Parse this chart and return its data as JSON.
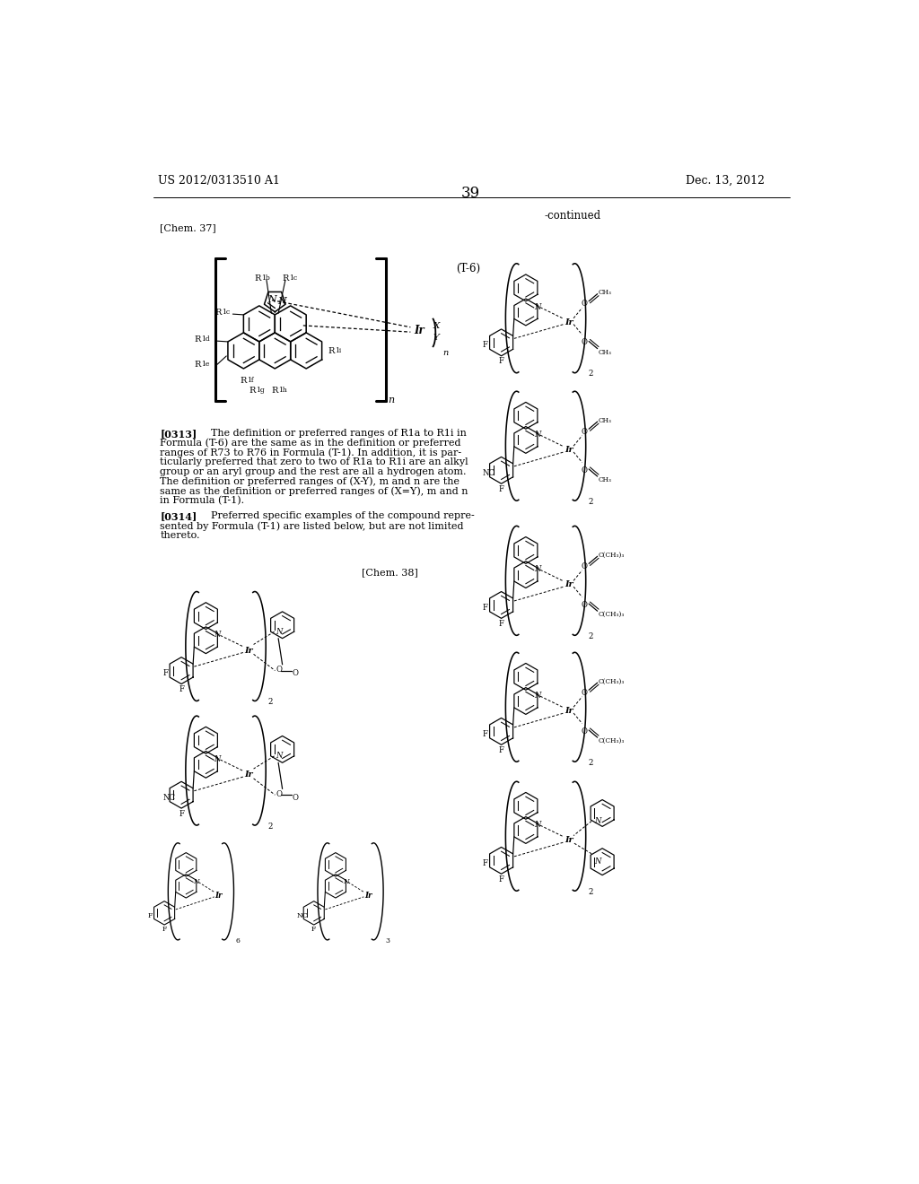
{
  "page_header_left": "US 2012/0313510 A1",
  "page_header_right": "Dec. 13, 2012",
  "page_number": "39",
  "continued_label": "-continued",
  "chem37_label": "[Chem. 37]",
  "chem38_label": "[Chem. 38]",
  "formula_label": "(T-6)",
  "p313_lines": [
    "[0313]   The definition or preferred ranges of R1a to R1i in",
    "Formula (T-6) are the same as in the definition or preferred",
    "ranges of R73 to R76 in Formula (T-1). In addition, it is par-",
    "ticularly preferred that zero to two of R1a to R1i are an alkyl",
    "group or an aryl group and the rest are all a hydrogen atom.",
    "The definition or preferred ranges of (X-Y), m and n are the",
    "same as the definition or preferred ranges of (X=Y), m and n",
    "in Formula (T-1)."
  ],
  "p314_lines": [
    "[0314]   Preferred specific examples of the compound repre-",
    "sented by Formula (T-1) are listed below, but are not limited",
    "thereto."
  ],
  "background_color": "#ffffff"
}
